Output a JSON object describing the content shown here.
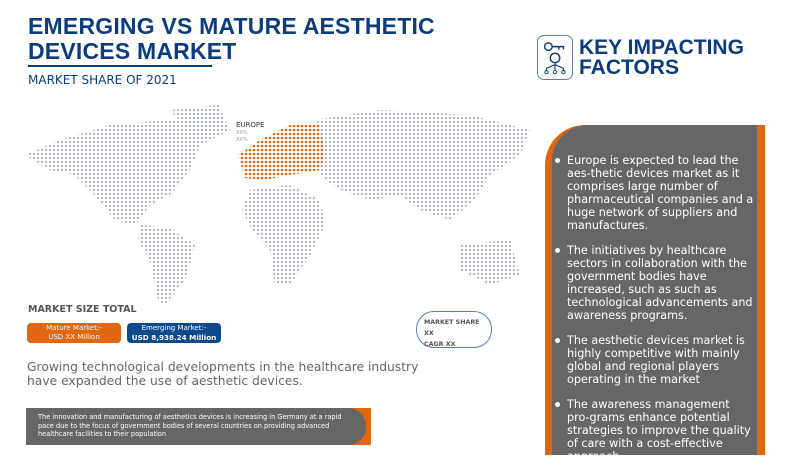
{
  "title": "EMERGING VS MATURE AESTHETIC DEVICES MARKET",
  "subtitle": "MARKET SHARE OF 2021",
  "key_factors": {
    "title_line1": "KEY IMPACTING",
    "title_line2": "FACTORS",
    "icon": "key-gear-network-icon",
    "bullets": [
      "Europe is expected to lead the aes-thetic devices market as it comprises large number of pharmaceutical companies and a huge network of suppliers and manufactures.",
      "The initiatives by healthcare sectors in collaboration with the government bodies have increased, such as such as technological advancements and awareness programs.",
      "The aesthetic devices market is highly competitive with mainly global and regional players operating in the market",
      "The awareness management pro-grams enhance potential strategies to improve the quality of care with a cost-effective approach."
    ]
  },
  "map": {
    "region_label": "EUROPE",
    "value1": "XX%",
    "value2": "XX%",
    "highlight_color": "#e0660f",
    "dot_color": "#a8b0bc"
  },
  "market_size": {
    "label": "MARKET SIZE TOTAL",
    "mature_label": "Mature Market:-",
    "mature_value": "USD XX Million",
    "emerging_label": "Emerging Market:-",
    "emerging_value": "USD 8,938.24 Million"
  },
  "share_box": {
    "share": "MARKET SHARE XX",
    "cagr": "CAGR XX"
  },
  "growth_text": "Growing technological developments in the healthcare industry have expanded the use of aesthetic devices.",
  "note": "The innovation and manufacturing of aesthetics devices is increasing in Germany at a rapid pace due to the focus of government bodies of several countries on providing advanced healthcare facilities to their population",
  "colors": {
    "primary": "#0c3c7c",
    "accent": "#e0660f",
    "panel": "#666666"
  }
}
